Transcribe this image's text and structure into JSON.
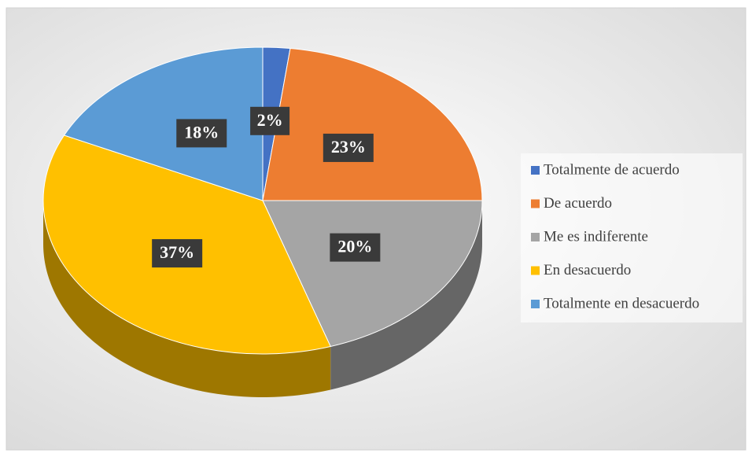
{
  "chart_data": {
    "type": "pie",
    "categories": [
      "Totalmente de acuerdo",
      "De acuerdo",
      "Me es indiferente",
      "En desacuerdo",
      "Totalmente en desacuerdo"
    ],
    "values": [
      2,
      23,
      20,
      37,
      18
    ],
    "value_labels": [
      "2%",
      "23%",
      "20%",
      "37%",
      "18%"
    ],
    "colors": [
      "#4472c4",
      "#ed7d31",
      "#a5a5a5",
      "#ffc000",
      "#5b9bd5"
    ],
    "legend": "right"
  }
}
